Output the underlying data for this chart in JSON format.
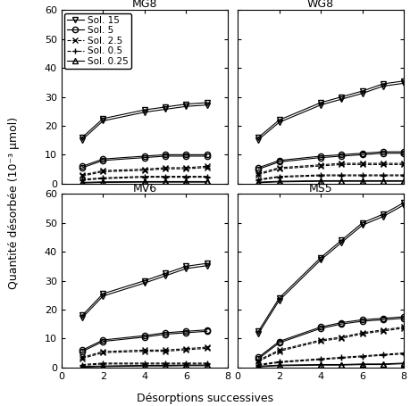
{
  "subplots": [
    {
      "title": "MG8",
      "x": [
        1,
        2,
        4,
        5,
        6,
        7
      ],
      "sol15": [
        16.0,
        22.5,
        25.5,
        26.5,
        27.5,
        28.0
      ],
      "sol5": [
        6.0,
        8.5,
        9.5,
        10.0,
        10.0,
        10.0
      ],
      "sol2_5": [
        3.0,
        4.5,
        5.0,
        5.5,
        5.5,
        6.0
      ],
      "sol0_5": [
        1.5,
        2.0,
        2.5,
        2.5,
        2.5,
        2.5
      ],
      "sol0_25": [
        0.4,
        0.6,
        0.7,
        0.7,
        0.7,
        0.7
      ],
      "ylim": [
        0,
        60
      ],
      "yticks": [
        0,
        10,
        20,
        30,
        40,
        50,
        60
      ],
      "xmax": 8,
      "xticks": [
        0,
        2,
        4,
        6,
        8
      ]
    },
    {
      "title": "WG8",
      "x": [
        1,
        2,
        4,
        5,
        6,
        7,
        8
      ],
      "sol15": [
        16.0,
        22.0,
        28.0,
        30.0,
        32.0,
        34.5,
        35.5
      ],
      "sol5": [
        5.5,
        8.0,
        9.5,
        10.0,
        10.5,
        11.0,
        11.0
      ],
      "sol2_5": [
        3.5,
        5.5,
        6.5,
        7.0,
        7.0,
        7.0,
        7.0
      ],
      "sol0_5": [
        1.5,
        2.5,
        3.0,
        3.0,
        3.0,
        3.0,
        3.0
      ],
      "sol0_25": [
        0.5,
        0.8,
        1.0,
        1.0,
        1.0,
        1.0,
        1.0
      ],
      "ylim": [
        0,
        60
      ],
      "yticks": [
        0,
        10,
        20,
        30,
        40,
        50,
        60
      ],
      "xmax": 8,
      "xticks": [
        0,
        2,
        4,
        6,
        8
      ]
    },
    {
      "title": "MV6",
      "x": [
        1,
        2,
        4,
        5,
        6,
        7
      ],
      "sol15": [
        18.0,
        25.5,
        30.0,
        32.5,
        35.0,
        36.0
      ],
      "sol5": [
        6.0,
        9.5,
        11.0,
        12.0,
        12.5,
        13.0
      ],
      "sol2_5": [
        3.5,
        5.5,
        6.0,
        6.0,
        6.5,
        7.0
      ],
      "sol0_5": [
        1.0,
        1.5,
        1.5,
        1.5,
        1.5,
        1.5
      ],
      "sol0_25": [
        0.3,
        0.5,
        0.7,
        0.7,
        0.8,
        0.8
      ],
      "ylim": [
        0,
        60
      ],
      "yticks": [
        0,
        10,
        20,
        30,
        40,
        50,
        60
      ],
      "xmax": 8,
      "xticks": [
        0,
        2,
        4,
        6,
        8
      ]
    },
    {
      "title": "MS5",
      "x": [
        1,
        2,
        4,
        5,
        6,
        7,
        8
      ],
      "sol15": [
        12.5,
        24.0,
        38.0,
        44.0,
        50.0,
        53.0,
        57.0
      ],
      "sol5": [
        3.5,
        9.0,
        14.0,
        15.5,
        16.5,
        17.0,
        17.5
      ],
      "sol2_5": [
        2.5,
        6.0,
        9.5,
        10.5,
        12.0,
        13.0,
        14.0
      ],
      "sol0_5": [
        1.0,
        2.0,
        3.0,
        3.5,
        4.0,
        4.5,
        5.0
      ],
      "sol0_25": [
        0.4,
        0.8,
        1.0,
        1.0,
        1.2,
        1.2,
        1.5
      ],
      "ylim": [
        0,
        60
      ],
      "yticks": [
        0,
        10,
        20,
        30,
        40,
        50,
        60
      ],
      "xmax": 8,
      "xticks": [
        0,
        2,
        4,
        6,
        8
      ]
    }
  ],
  "legend_labels": [
    "Sol. 15",
    "Sol. 5",
    "Sol. 2.5",
    "Sol. 0.5",
    "Sol. 0.25"
  ],
  "xlabel": "Désorptions successives",
  "ylabel": "Quantité désorbée (10⁻³ μmol)",
  "line_color": "black",
  "bg_color": "white",
  "title_fontsize": 9,
  "label_fontsize": 9,
  "tick_fontsize": 8,
  "legend_fontsize": 7.5
}
